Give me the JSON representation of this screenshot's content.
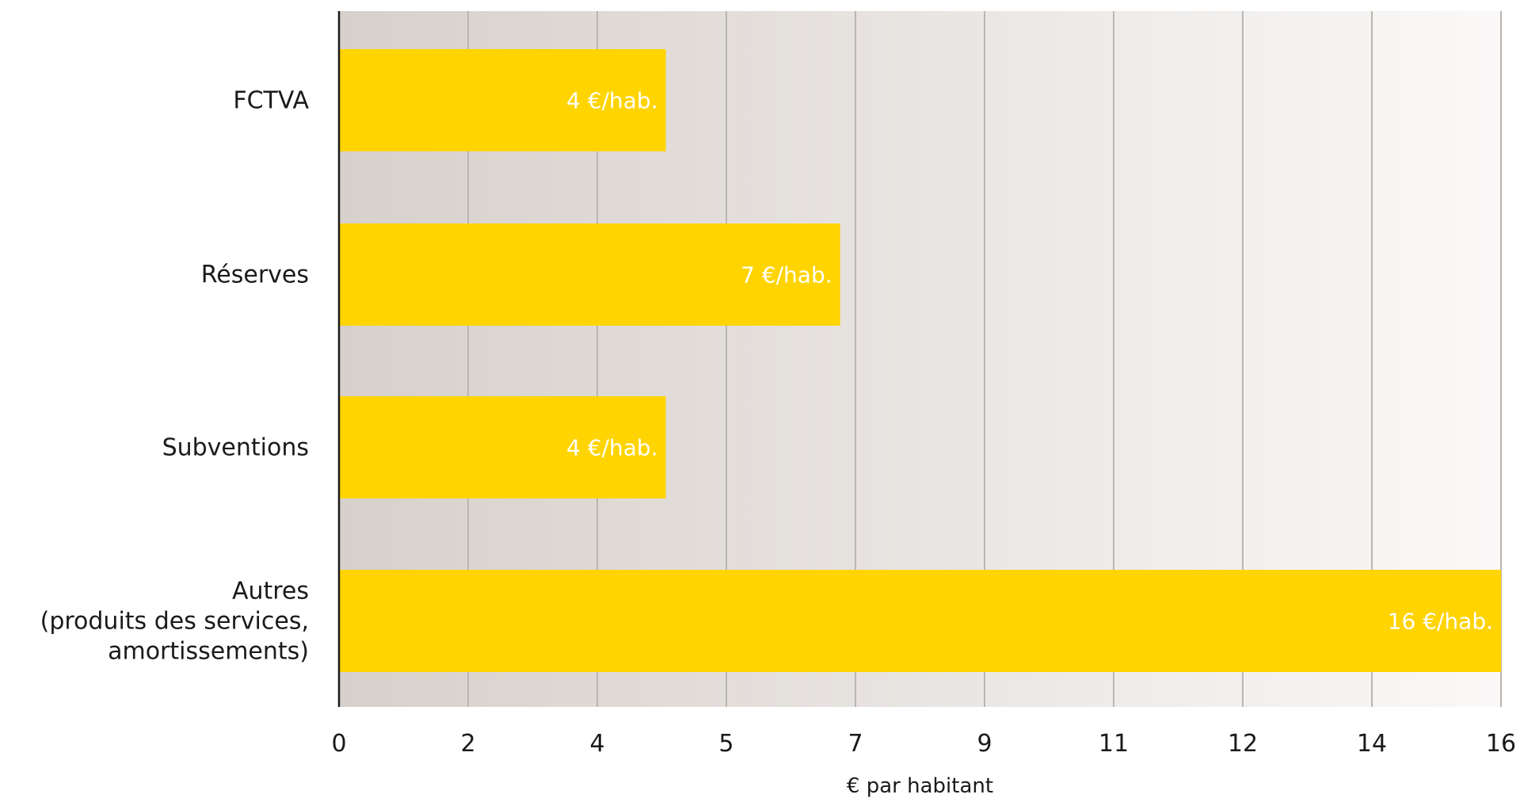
{
  "chart_data": {
    "type": "bar",
    "orientation": "horizontal",
    "categories": [
      [
        "FCTVA"
      ],
      [
        "Réserves"
      ],
      [
        "Subventions"
      ],
      [
        "Autres",
        "(produits des services,",
        "amortissements)"
      ]
    ],
    "values": [
      4.5,
      6.9,
      4.5,
      16.0
    ],
    "data_labels": [
      "4 €/hab.",
      "7 €/hab.",
      "4 €/hab.",
      "16 €/hab."
    ],
    "x_ticks": [
      {
        "value": 0,
        "label": "0"
      },
      {
        "value": 1.778,
        "label": "2"
      },
      {
        "value": 3.556,
        "label": "4"
      },
      {
        "value": 5.333,
        "label": "5"
      },
      {
        "value": 7.111,
        "label": "7"
      },
      {
        "value": 8.889,
        "label": "9"
      },
      {
        "value": 10.667,
        "label": "11"
      },
      {
        "value": 12.444,
        "label": "12"
      },
      {
        "value": 14.222,
        "label": "14"
      },
      {
        "value": 16.0,
        "label": "16"
      }
    ],
    "xlim": [
      0,
      16
    ],
    "xlabel": "€ par habitant",
    "ylabel": "",
    "title": "",
    "grid": true,
    "colors": {
      "bar": "#FFD400",
      "grid": "#B9B5B1",
      "plot_bg_left": "#D7D0CB",
      "plot_bg_right": "#FAF9F8",
      "axis": "#1a1a1a",
      "label_text": "#ffffff"
    }
  }
}
